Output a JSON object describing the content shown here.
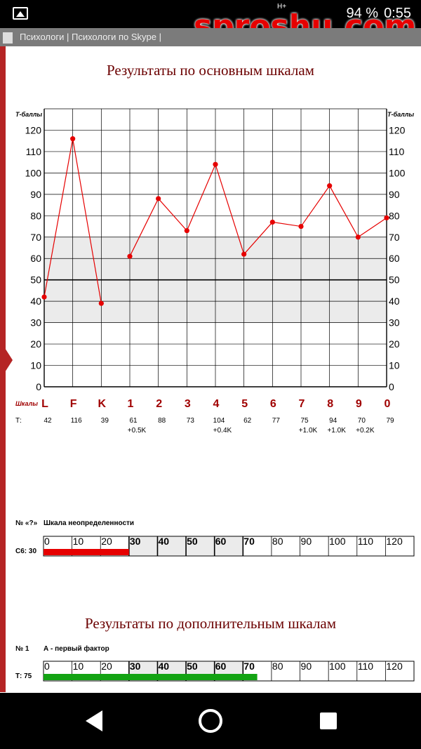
{
  "status_bar": {
    "network": "H+",
    "battery": "94 %",
    "time": "0:55"
  },
  "watermark": "sproshu.com",
  "top_strip": "Психологи  |  Психологи по Skype  |",
  "main_section": {
    "title": "Результаты по основным шкалам",
    "y_axis_label": "Т-баллы",
    "row_label_scales": "Шкалы",
    "row_label_t": "Т:"
  },
  "chart_data": {
    "type": "line",
    "title": "Результаты по основным шкалам",
    "ylabel": "Т-баллы",
    "xlabel": "Шкалы",
    "ylim": [
      0,
      130
    ],
    "yticks": [
      0,
      10,
      20,
      30,
      40,
      50,
      60,
      70,
      80,
      90,
      100,
      110,
      120
    ],
    "grid": true,
    "normal_band": [
      30,
      70
    ],
    "reference_line": 50,
    "categories": [
      "L",
      "F",
      "K",
      "1",
      "2",
      "3",
      "4",
      "5",
      "6",
      "7",
      "8",
      "9",
      "0"
    ],
    "segments": [
      [
        0,
        1,
        2
      ],
      [
        3,
        4,
        5,
        6,
        7,
        8,
        9,
        10,
        11,
        12
      ]
    ],
    "series": [
      {
        "values": [
          42,
          116,
          39,
          61,
          88,
          73,
          104,
          62,
          77,
          75,
          94,
          70,
          79
        ]
      }
    ],
    "t_labels": [
      "42",
      "116",
      "39",
      "61",
      "88",
      "73",
      "104",
      "62",
      "77",
      "75",
      "94",
      "70",
      "79"
    ],
    "k_corrections": [
      "",
      "",
      "",
      "+0.5K",
      "",
      "",
      "+0.4K",
      "",
      "",
      "+1.0K",
      "+1.0K",
      "+0.2K",
      ""
    ],
    "colors": {
      "line": "#e60000",
      "band": "#ebebeb",
      "label": "#a00000"
    }
  },
  "uncertainty_scale": {
    "number": "№ «?»",
    "name": "Шкала неопределенности",
    "t_label": "С6: 30",
    "value": 30,
    "ticks": [
      "0",
      "10",
      "20",
      "30",
      "40",
      "50",
      "60",
      "70",
      "80",
      "90",
      "100",
      "110",
      "120"
    ],
    "bar_color": "#e60000"
  },
  "additional_section": {
    "title": "Результаты по дополнительным шкалам"
  },
  "factor_scale": {
    "number": "№ 1",
    "name": "А - первый фактор",
    "t_label": "Т: 75",
    "value": 75,
    "ticks": [
      "0",
      "10",
      "20",
      "30",
      "40",
      "50",
      "60",
      "70",
      "80",
      "90",
      "100",
      "110",
      "120"
    ],
    "bar_color": "#13a313"
  },
  "nav_bar": {
    "back_icon": "back-triangle-icon",
    "home_icon": "home-circle-icon",
    "recent_icon": "recent-square-icon"
  }
}
